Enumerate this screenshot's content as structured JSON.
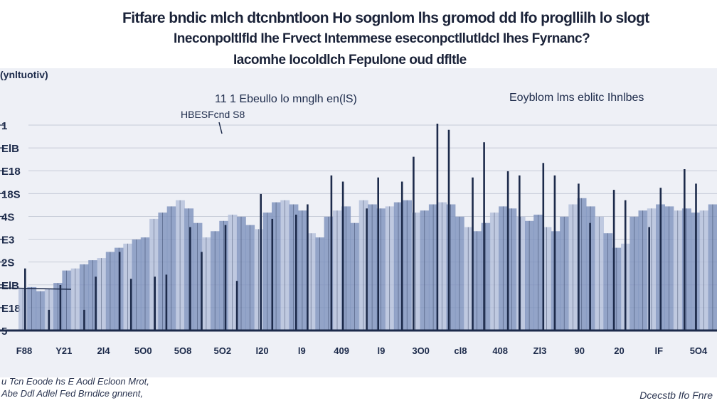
{
  "chart_data": {
    "type": "bar",
    "title_lines": [
      "Fitfare bndic mlch dtcnbntloon Ho sognlom lhs gromod dd lfo progllilh lo slogt",
      "Ineconpoltlfld Ihe Frvect Intemmese eseconpctllutldcl Ihes Fyrnanc?",
      "Iacomhe Iocoldlch Fepulone oud dfltle"
    ],
    "ylabel": "(ynltuotiv)",
    "subtitle_left": "11 1  Ebeullo lo mnglh en(lS)",
    "subtitle_right": "Eoyblom lms eblitc Ihnlbes",
    "annotation": "HBESFcnd S8",
    "ytick_labels": [
      "1",
      "ElB",
      "E18",
      "18S",
      "4S",
      "E3",
      "2S",
      "ElB",
      "E18",
      "5"
    ],
    "xtick_labels": [
      "F88",
      "Y21",
      "2l4",
      "5O0",
      "5O8",
      "5O2",
      "l20",
      "l9",
      "409",
      "l9",
      "3O0",
      "cl8",
      "408",
      "Zl3",
      "90",
      "20",
      "lF",
      "5O4"
    ],
    "ylim": [
      0,
      100
    ],
    "series": [
      {
        "name": "tall-spikes",
        "values": [
          30,
          10,
          22,
          10,
          26,
          38,
          25,
          26,
          27,
          50,
          38,
          51,
          24,
          66,
          54,
          56,
          61,
          75,
          72,
          59,
          74,
          72,
          84,
          100,
          97,
          74,
          91,
          77,
          75,
          81,
          75,
          71,
          52,
          68,
          63,
          50,
          69,
          78,
          71
        ]
      },
      {
        "name": "blocks",
        "values": [
          20,
          21,
          19,
          20,
          23,
          29,
          30,
          32,
          34,
          35,
          38,
          40,
          42,
          44,
          45,
          54,
          57,
          60,
          63,
          59,
          52,
          45,
          48,
          53,
          56,
          55,
          51,
          49,
          57,
          62,
          63,
          61,
          58,
          47,
          45,
          55,
          58,
          60,
          52,
          63,
          61,
          59,
          60,
          62,
          63,
          57,
          58,
          61,
          62,
          61,
          55,
          50,
          48,
          52,
          57,
          60,
          59,
          55,
          53,
          56,
          50,
          48,
          55,
          61,
          64,
          60,
          55,
          47,
          40,
          42,
          55,
          58,
          59,
          61,
          60,
          58,
          59,
          57,
          58,
          61
        ]
      }
    ]
  },
  "footer": {
    "left_line1": "u Tcn Eoode hs E Aodl Ecloon Mrot,",
    "left_line2": "Abe Ddl Adlel Fed Brndlce gnnent,",
    "right": "Dcecstb Ifo Fnre"
  },
  "colors": {
    "bar_dark": "#1c2a4a",
    "bar_fill": "#7f93bd",
    "bar_light": "#b4c0da",
    "background": "#eef0f6",
    "grid": "#c7ccd8"
  }
}
